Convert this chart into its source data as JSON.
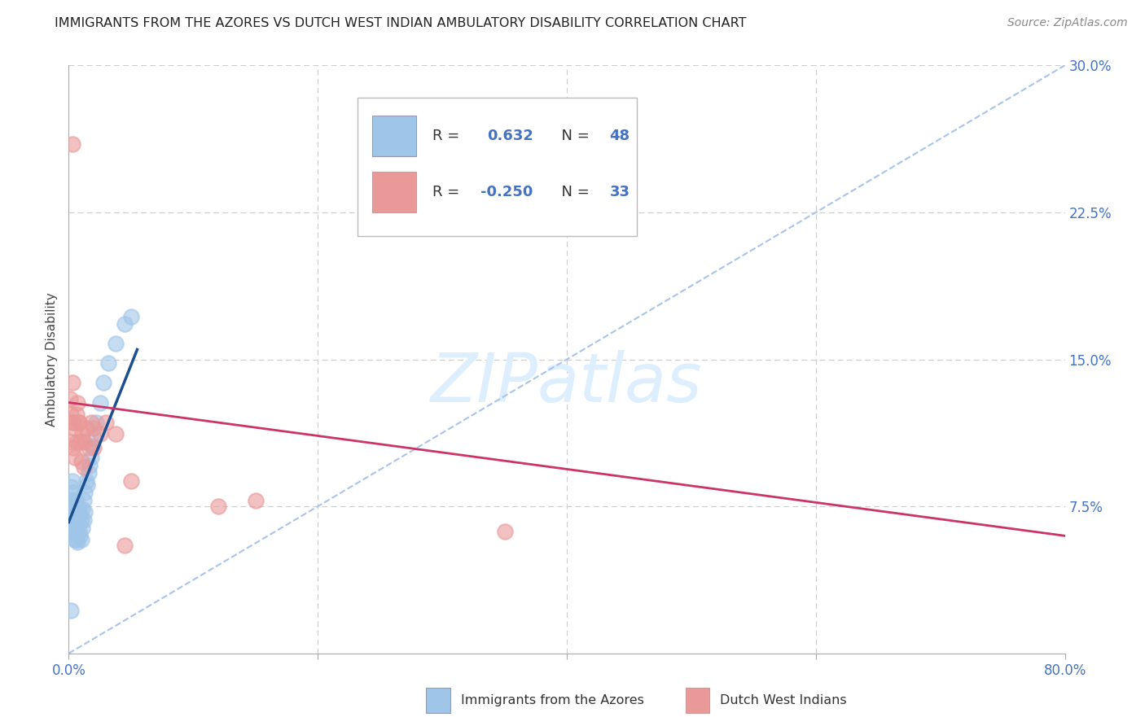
{
  "title": "IMMIGRANTS FROM THE AZORES VS DUTCH WEST INDIAN AMBULATORY DISABILITY CORRELATION CHART",
  "source": "Source: ZipAtlas.com",
  "ylabel": "Ambulatory Disability",
  "xlim": [
    0.0,
    0.8
  ],
  "ylim": [
    0.0,
    0.3
  ],
  "blue_color": "#9fc5e8",
  "pink_color": "#ea9999",
  "blue_line_color": "#1a4f91",
  "pink_line_color": "#cc3366",
  "ref_line_color": "#a8c4e8",
  "watermark_color": "#ddeeff",
  "label_color": "#4472c4",
  "title_color": "#222222",
  "blue_points_x": [
    0.001,
    0.001,
    0.002,
    0.002,
    0.002,
    0.003,
    0.003,
    0.003,
    0.004,
    0.004,
    0.004,
    0.005,
    0.005,
    0.005,
    0.005,
    0.006,
    0.006,
    0.006,
    0.007,
    0.007,
    0.007,
    0.008,
    0.008,
    0.009,
    0.009,
    0.01,
    0.01,
    0.011,
    0.011,
    0.012,
    0.012,
    0.013,
    0.013,
    0.014,
    0.015,
    0.016,
    0.017,
    0.018,
    0.019,
    0.02,
    0.022,
    0.025,
    0.028,
    0.032,
    0.038,
    0.045,
    0.05,
    0.002
  ],
  "blue_points_y": [
    0.078,
    0.068,
    0.085,
    0.075,
    0.065,
    0.088,
    0.078,
    0.068,
    0.082,
    0.072,
    0.062,
    0.076,
    0.07,
    0.062,
    0.058,
    0.078,
    0.068,
    0.058,
    0.075,
    0.065,
    0.057,
    0.072,
    0.062,
    0.07,
    0.06,
    0.068,
    0.058,
    0.074,
    0.064,
    0.078,
    0.068,
    0.082,
    0.072,
    0.088,
    0.086,
    0.092,
    0.096,
    0.1,
    0.106,
    0.11,
    0.118,
    0.128,
    0.138,
    0.148,
    0.158,
    0.168,
    0.172,
    0.022
  ],
  "pink_points_x": [
    0.001,
    0.002,
    0.002,
    0.003,
    0.004,
    0.004,
    0.005,
    0.005,
    0.006,
    0.007,
    0.008,
    0.009,
    0.01,
    0.011,
    0.012,
    0.014,
    0.016,
    0.018,
    0.02,
    0.025,
    0.03,
    0.038,
    0.05,
    0.12,
    0.15,
    0.35,
    0.003,
    0.006,
    0.008,
    0.012,
    0.02,
    0.045,
    0.003
  ],
  "pink_points_y": [
    0.13,
    0.122,
    0.108,
    0.138,
    0.118,
    0.105,
    0.115,
    0.1,
    0.122,
    0.128,
    0.118,
    0.108,
    0.098,
    0.112,
    0.108,
    0.115,
    0.105,
    0.118,
    0.115,
    0.112,
    0.118,
    0.112,
    0.088,
    0.075,
    0.078,
    0.062,
    0.118,
    0.108,
    0.118,
    0.095,
    0.105,
    0.055,
    0.26
  ]
}
